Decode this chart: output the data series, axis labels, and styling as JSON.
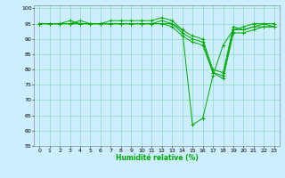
{
  "xlabel": "Humidité relative (%)",
  "bg_color": "#cceeff",
  "grid_color": "#99ddcc",
  "line_color": "#00aa00",
  "xlim": [
    -0.5,
    23.5
  ],
  "ylim": [
    55,
    101
  ],
  "yticks": [
    55,
    60,
    65,
    70,
    75,
    80,
    85,
    90,
    95,
    100
  ],
  "xticks": [
    0,
    1,
    2,
    3,
    4,
    5,
    6,
    7,
    8,
    9,
    10,
    11,
    12,
    13,
    14,
    15,
    16,
    17,
    18,
    19,
    20,
    21,
    22,
    23
  ],
  "series": [
    [
      95,
      95,
      95,
      95,
      96,
      95,
      95,
      96,
      96,
      96,
      96,
      96,
      97,
      96,
      93,
      62,
      64,
      78,
      88,
      93,
      94,
      95,
      95,
      95
    ],
    [
      95,
      95,
      95,
      96,
      95,
      95,
      95,
      95,
      95,
      95,
      95,
      95,
      96,
      95,
      93,
      91,
      90,
      80,
      79,
      94,
      93,
      94,
      95,
      94
    ],
    [
      95,
      95,
      95,
      95,
      95,
      95,
      95,
      95,
      95,
      95,
      95,
      95,
      95,
      95,
      92,
      90,
      89,
      79,
      78,
      93,
      93,
      94,
      94,
      94
    ],
    [
      95,
      95,
      95,
      95,
      95,
      95,
      95,
      95,
      95,
      95,
      95,
      95,
      95,
      94,
      91,
      89,
      88,
      79,
      77,
      92,
      92,
      93,
      94,
      94
    ]
  ]
}
